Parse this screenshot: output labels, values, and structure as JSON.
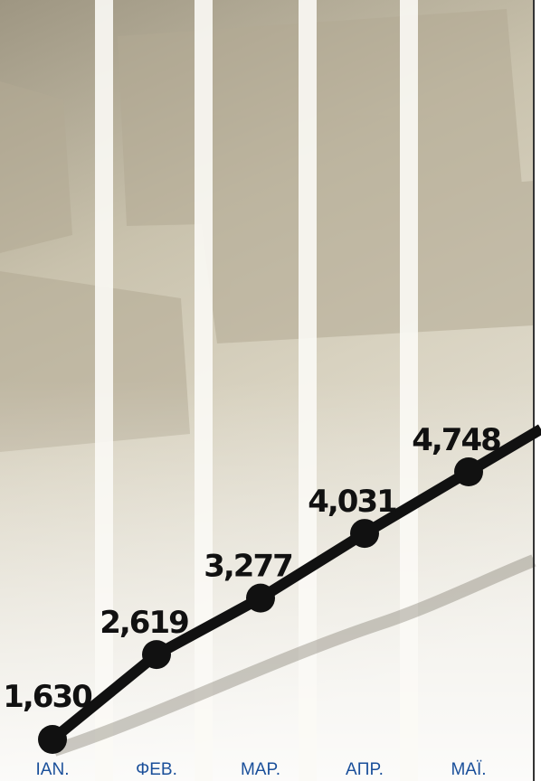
{
  "chart_data": {
    "type": "line",
    "categories": [
      "IAN.",
      "ΦEB.",
      "MAP.",
      "AΠP.",
      "MAÏ."
    ],
    "values": [
      1630,
      2619,
      3277,
      4031,
      4748
    ],
    "value_labels": [
      "1,630",
      "2,619",
      "3,277",
      "4,031",
      "4,748"
    ],
    "color": "#111111"
  }
}
